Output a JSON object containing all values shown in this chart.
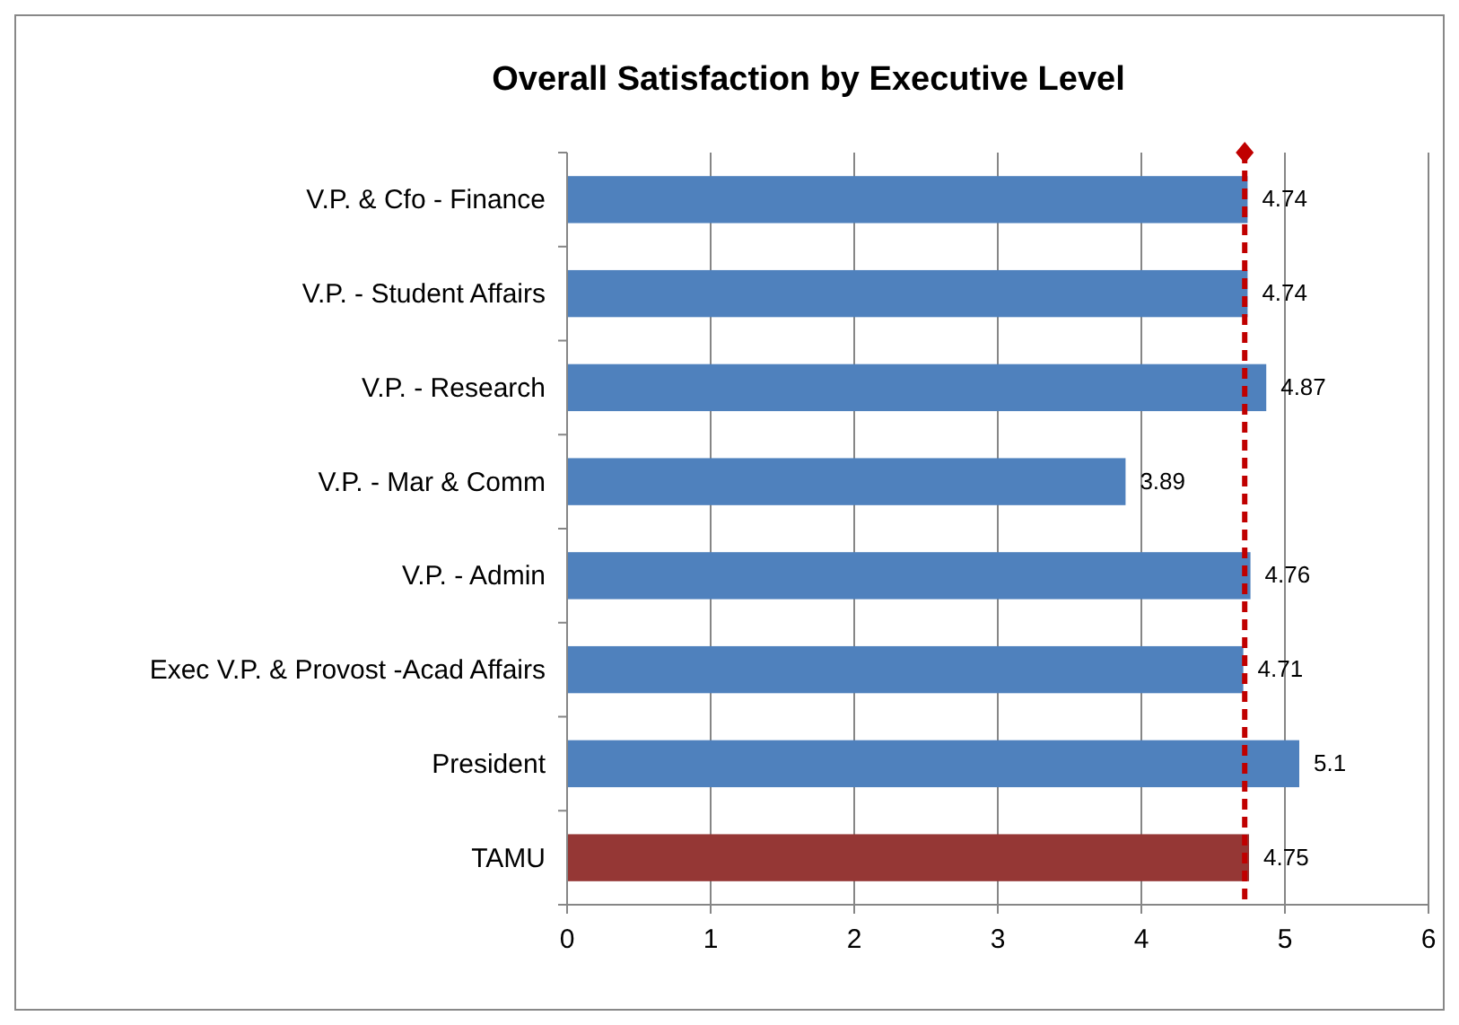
{
  "chart_data": {
    "type": "bar",
    "orientation": "horizontal",
    "title": "Overall Satisfaction by Executive Level",
    "categories": [
      "V.P. & Cfo - Finance",
      "V.P. - Student Affairs",
      "V.P. - Research",
      "V.P. - Mar & Comm",
      "V.P. - Admin",
      "Exec V.P. & Provost -Acad Affairs",
      "President",
      "TAMU"
    ],
    "values": [
      4.74,
      4.74,
      4.87,
      3.89,
      4.76,
      4.71,
      5.1,
      4.75
    ],
    "colors": [
      "#4f81bd",
      "#4f81bd",
      "#4f81bd",
      "#4f81bd",
      "#4f81bd",
      "#4f81bd",
      "#4f81bd",
      "#953735"
    ],
    "xlim": [
      0,
      6
    ],
    "xticks": [
      0,
      1,
      2,
      3,
      4,
      5,
      6
    ],
    "grid": "x",
    "data_labels": true,
    "ref_lines": [
      {
        "axis": "x",
        "value": 4.72,
        "color": "#c00000",
        "line_style": "dashed"
      }
    ]
  }
}
